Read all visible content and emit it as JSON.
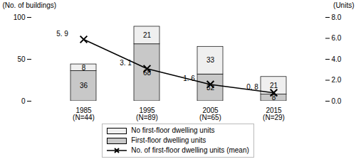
{
  "chart_data": {
    "type": "bar",
    "stacked": true,
    "data_labels": true,
    "grid": false,
    "legend": "bottom",
    "categories": [
      "1985\n(N=44)",
      "1995\n(N=89)",
      "2005\n(N=65)",
      "2015\n(N=29)"
    ],
    "ylabel": "(No. of buildings)",
    "y2label": "(Units)",
    "ylim": [
      0,
      100
    ],
    "yticks": [
      0,
      50,
      100
    ],
    "y2lim": [
      0.0,
      8.0
    ],
    "y2ticks": [
      {
        "value": 0,
        "label": "0.0"
      },
      {
        "value": 2,
        "label": "2.0"
      },
      {
        "value": 4,
        "label": "4.0"
      },
      {
        "value": 6,
        "label": "6.0"
      },
      {
        "value": 8,
        "label": "8.0"
      }
    ],
    "series": [
      {
        "name": "First-floor dwelling units",
        "color": "#c8c8c8",
        "values": [
          36,
          68,
          32,
          8
        ]
      },
      {
        "name": "No first-floor dwelling units",
        "color": "#efefef",
        "values": [
          8,
          21,
          33,
          21
        ]
      },
      {
        "name": "No. of first-floor dwelling units (mean)",
        "type": "line",
        "axis": "y2",
        "color": "#000000",
        "marker": "x",
        "values": [
          5.9,
          3.1,
          1.6,
          0.8
        ],
        "value_labels": [
          "5. 9",
          "3. 1",
          "1. 6",
          "0. 8"
        ]
      }
    ]
  }
}
